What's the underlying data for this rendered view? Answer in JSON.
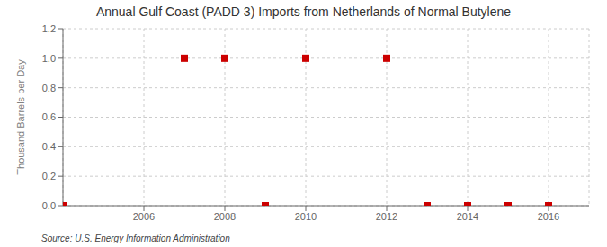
{
  "chart_data": {
    "type": "scatter",
    "title": "Annual Gulf Coast (PADD 3) Imports from Netherlands of Normal Butylene",
    "ylabel": "Thousand Barrels per Day",
    "annotation": "Source: U.S. Energy Information Administration",
    "x": [
      2004,
      2007,
      2008,
      2009,
      2010,
      2012,
      2013,
      2014,
      2015,
      2016
    ],
    "values": [
      0.0,
      1.0,
      1.0,
      0.0,
      1.0,
      1.0,
      0.0,
      0.0,
      0.0,
      0.0
    ],
    "color": "#CC0000",
    "marker": "square",
    "xlim": [
      2004.0,
      2017.0
    ],
    "ylim": [
      0.0,
      1.2
    ],
    "xticks": [
      2006,
      2008,
      2010,
      2012,
      2014,
      2016
    ],
    "yticks": [
      {
        "value": 0.0,
        "label": "0.0"
      },
      0.2,
      0.4,
      0.6,
      0.8,
      {
        "value": 1.0,
        "label": "1.0"
      },
      1.2
    ],
    "grid": true
  }
}
